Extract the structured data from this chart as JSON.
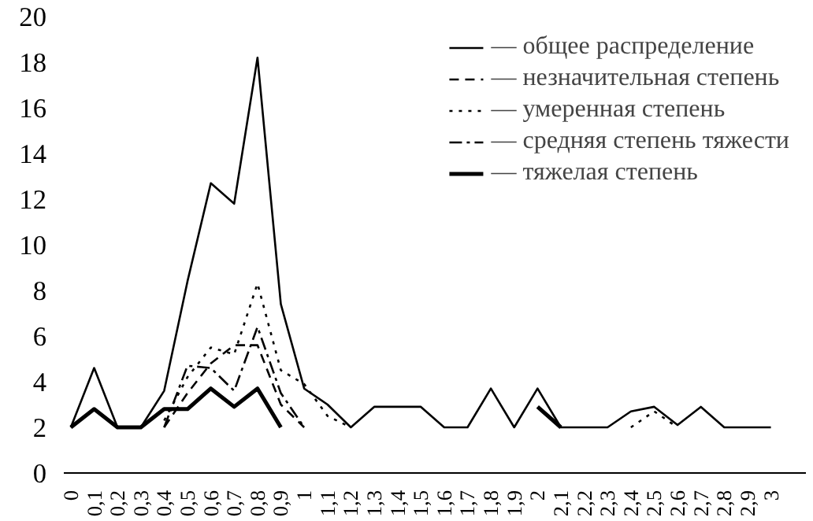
{
  "chart_data": {
    "type": "line",
    "categories": [
      "0",
      "0,1",
      "0,2",
      "0,3",
      "0,4",
      "0,5",
      "0,6",
      "0,7",
      "0,8",
      "0,9",
      "1",
      "1,1",
      "1,2",
      "1,3",
      "1,4",
      "1,5",
      "1,6",
      "1,7",
      "1,8",
      "1,9",
      "2",
      "2,1",
      "2,2",
      "2,3",
      "2,4",
      "2,5",
      "2,6",
      "2,7",
      "2,8",
      "2,9",
      "3"
    ],
    "series": [
      {
        "name": "— общее распределение",
        "color": "#000000",
        "line_style": "solid",
        "values": [
          2,
          4.6,
          2,
          2,
          3.6,
          8.4,
          12.7,
          11.8,
          18.2,
          7.4,
          3.7,
          3.0,
          2,
          2.9,
          2.9,
          2.9,
          2,
          2,
          3.7,
          2,
          3.7,
          2,
          2,
          2,
          2.7,
          2.9,
          2.1,
          2.9,
          2,
          2,
          2
        ]
      },
      {
        "name": "— незначительная степень",
        "color": "#000000",
        "line_style": "dashed",
        "values": [
          null,
          null,
          null,
          null,
          2,
          3.5,
          4.8,
          5.6,
          5.6,
          3.0,
          2,
          null,
          null,
          null,
          null,
          null,
          null,
          null,
          null,
          null,
          null,
          null,
          null,
          null,
          null,
          null,
          null,
          null,
          null,
          null,
          null
        ]
      },
      {
        "name": "— умеренная степень",
        "color": "#000000",
        "line_style": "dotted",
        "values": [
          null,
          null,
          null,
          null,
          2.3,
          4.2,
          5.5,
          5.2,
          8.3,
          4.5,
          3.9,
          2.5,
          2,
          null,
          null,
          null,
          null,
          null,
          null,
          null,
          null,
          null,
          null,
          null,
          2,
          2.7,
          2,
          null,
          null,
          null,
          null
        ]
      },
      {
        "name": "— средняя степень тяжести",
        "color": "#000000",
        "line_style": "dashdot",
        "values": [
          null,
          null,
          null,
          null,
          2,
          4.7,
          4.6,
          3.6,
          6.4,
          3.5,
          2,
          null,
          null,
          null,
          null,
          null,
          null,
          null,
          null,
          null,
          null,
          null,
          null,
          null,
          null,
          null,
          null,
          null,
          null,
          null,
          null
        ]
      },
      {
        "name": "— тяжелая степень",
        "color": "#000000",
        "line_style": "solid",
        "values": [
          2,
          2.8,
          2,
          2,
          2.8,
          2.8,
          3.7,
          2.9,
          3.7,
          2,
          null,
          null,
          null,
          null,
          null,
          null,
          null,
          null,
          null,
          null,
          2.9,
          2,
          null,
          null,
          null,
          null,
          null,
          null,
          null,
          null,
          null
        ]
      }
    ],
    "ylim": [
      0,
      20
    ],
    "yticks": [
      0,
      2,
      4,
      6,
      8,
      10,
      12,
      14,
      16,
      18,
      20
    ],
    "grid": false,
    "legend": "top right"
  }
}
